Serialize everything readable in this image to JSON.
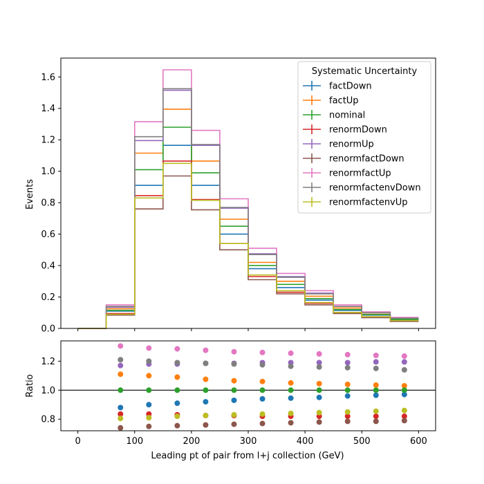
{
  "chart_data": [
    {
      "type": "line",
      "subtype": "step",
      "ylabel": "Events",
      "xlim": [
        -30,
        630
      ],
      "ylim": [
        0,
        1.72
      ],
      "yticks": [
        "0.0",
        "0.2",
        "0.4",
        "0.6",
        "0.8",
        "1.0",
        "1.2",
        "1.4",
        "1.6"
      ],
      "ytick_values": [
        0,
        0.2,
        0.4,
        0.6,
        0.8,
        1.0,
        1.2,
        1.4,
        1.6
      ],
      "bin_edges": [
        0,
        50,
        100,
        150,
        200,
        250,
        300,
        350,
        400,
        450,
        500,
        550,
        600
      ],
      "legend_title": "Systematic Uncertainty",
      "legend_position": "top-right",
      "series": [
        {
          "name": "factDown",
          "color": "#1f77b4",
          "values": [
            0,
            0.11,
            0.91,
            1.165,
            0.91,
            0.6,
            0.38,
            0.26,
            0.18,
            0.115,
            0.085,
            0.055
          ]
        },
        {
          "name": "factUp",
          "color": "#ff7f0e",
          "values": [
            0,
            0.125,
            1.115,
            1.395,
            1.065,
            0.695,
            0.42,
            0.3,
            0.205,
            0.13,
            0.09,
            0.06
          ]
        },
        {
          "name": "nominal",
          "color": "#2ca02c",
          "values": [
            0,
            0.115,
            1.01,
            1.28,
            0.99,
            0.65,
            0.4,
            0.28,
            0.19,
            0.12,
            0.088,
            0.058
          ]
        },
        {
          "name": "renormDown",
          "color": "#d62728",
          "values": [
            0,
            0.095,
            0.845,
            1.065,
            0.82,
            0.54,
            0.33,
            0.23,
            0.16,
            0.1,
            0.072,
            0.047
          ]
        },
        {
          "name": "renormUp",
          "color": "#9467bd",
          "values": [
            0,
            0.135,
            1.195,
            1.515,
            1.165,
            0.765,
            0.475,
            0.33,
            0.225,
            0.14,
            0.1,
            0.066
          ]
        },
        {
          "name": "renormfactDown",
          "color": "#8c564b",
          "values": [
            0,
            0.085,
            0.76,
            0.97,
            0.755,
            0.5,
            0.31,
            0.22,
            0.15,
            0.095,
            0.068,
            0.045
          ]
        },
        {
          "name": "renormfactUp",
          "color": "#e377c2",
          "values": [
            0,
            0.15,
            1.315,
            1.645,
            1.26,
            0.825,
            0.51,
            0.35,
            0.24,
            0.15,
            0.105,
            0.07
          ]
        },
        {
          "name": "renormfactenvDown",
          "color": "#7f7f7f",
          "values": [
            0,
            0.14,
            1.22,
            1.525,
            1.17,
            0.77,
            0.47,
            0.325,
            0.22,
            0.14,
            0.1,
            0.065
          ]
        },
        {
          "name": "renormfactenvUp",
          "color": "#bcbd22",
          "values": [
            0,
            0.09,
            0.83,
            1.05,
            0.815,
            0.54,
            0.34,
            0.24,
            0.165,
            0.102,
            0.075,
            0.05
          ]
        }
      ]
    },
    {
      "type": "scatter",
      "xlabel": "Leading pt of pair from l+j collection (GeV)",
      "ylabel": "Ratio",
      "xlim": [
        -30,
        630
      ],
      "ylim": [
        0.72,
        1.34
      ],
      "xticks": [
        "0",
        "100",
        "200",
        "300",
        "400",
        "500",
        "600"
      ],
      "xtick_values": [
        0,
        100,
        200,
        300,
        400,
        500,
        600
      ],
      "yticks": [
        "0.8",
        "1.0",
        "1.2"
      ],
      "ytick_values": [
        0.8,
        1.0,
        1.2
      ],
      "reference_line": 1.0,
      "x": [
        75,
        125,
        175,
        225,
        275,
        325,
        375,
        425,
        475,
        525,
        575
      ],
      "series": [
        {
          "name": "factDown",
          "color": "#1f77b4",
          "values": [
            0.88,
            0.9,
            0.91,
            0.92,
            0.93,
            0.94,
            0.945,
            0.95,
            0.96,
            0.965,
            0.97
          ]
        },
        {
          "name": "factUp",
          "color": "#ff7f0e",
          "values": [
            1.11,
            1.1,
            1.09,
            1.075,
            1.065,
            1.06,
            1.05,
            1.045,
            1.04,
            1.035,
            1.03
          ]
        },
        {
          "name": "nominal",
          "color": "#2ca02c",
          "values": [
            1.0,
            1.0,
            1.0,
            1.0,
            1.0,
            1.0,
            1.0,
            1.0,
            1.0,
            1.0,
            1.0
          ]
        },
        {
          "name": "renormDown",
          "color": "#d62728",
          "values": [
            0.835,
            0.835,
            0.83,
            0.825,
            0.825,
            0.82,
            0.82,
            0.82,
            0.82,
            0.82,
            0.82
          ]
        },
        {
          "name": "renormUp",
          "color": "#9467bd",
          "values": [
            1.17,
            1.18,
            1.18,
            1.185,
            1.185,
            1.19,
            1.19,
            1.19,
            1.19,
            1.195,
            1.195
          ]
        },
        {
          "name": "renormfactDown",
          "color": "#8c564b",
          "values": [
            0.74,
            0.75,
            0.755,
            0.76,
            0.765,
            0.77,
            0.775,
            0.78,
            0.785,
            0.785,
            0.79
          ]
        },
        {
          "name": "renormfactUp",
          "color": "#e377c2",
          "values": [
            1.305,
            1.29,
            1.285,
            1.275,
            1.265,
            1.26,
            1.255,
            1.25,
            1.245,
            1.24,
            1.235
          ]
        },
        {
          "name": "renormfactenvDown",
          "color": "#7f7f7f",
          "values": [
            1.21,
            1.2,
            1.19,
            1.185,
            1.18,
            1.175,
            1.165,
            1.16,
            1.155,
            1.15,
            1.14
          ]
        },
        {
          "name": "renormfactenvUp",
          "color": "#bcbd22",
          "values": [
            0.805,
            0.81,
            0.82,
            0.825,
            0.83,
            0.835,
            0.84,
            0.845,
            0.85,
            0.855,
            0.86
          ]
        }
      ]
    }
  ]
}
